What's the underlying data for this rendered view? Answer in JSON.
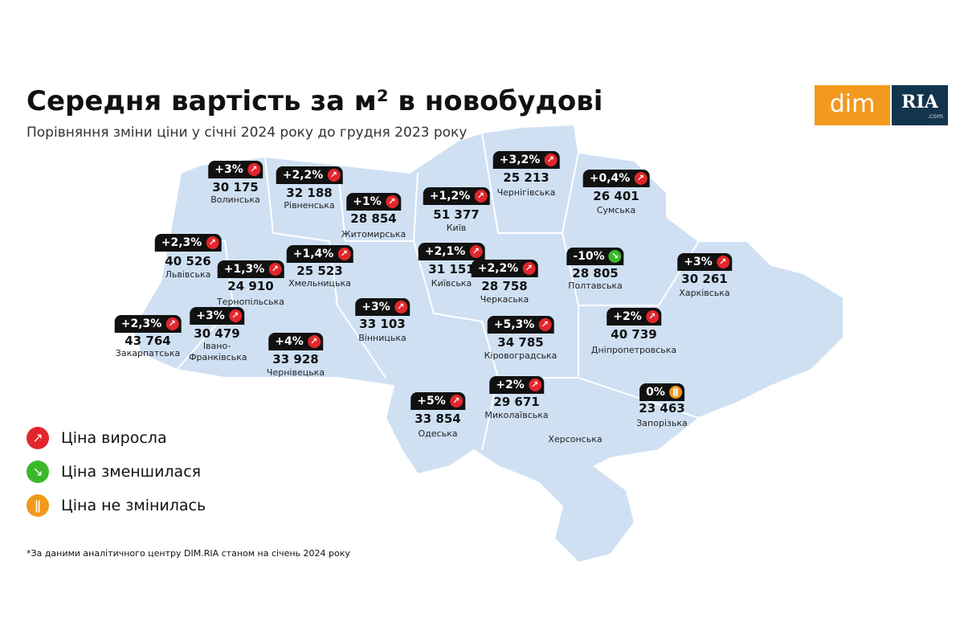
{
  "header": {
    "title": "Середня вартість за м² в новобудові",
    "subtitle": "Порівняння зміни ціни у січні 2024 року до грудня 2023 року"
  },
  "logo": {
    "left": "dim",
    "right": "RIA",
    "suffix": ".com"
  },
  "legend": [
    {
      "label": "Ціна виросла",
      "color": "#e3262b"
    },
    {
      "label": "Ціна зменшилася",
      "color": "#3bb82a"
    },
    {
      "label": "Ціна не змінилась",
      "color": "#ef9a1c"
    }
  ],
  "regions": [
    {
      "name": "Волинська",
      "change": "+3%",
      "price": "30 175",
      "color": "#e3262b"
    },
    {
      "name": "Рівненська",
      "change": "+2,2%",
      "price": "32 188",
      "color": "#e3262b"
    },
    {
      "name": "Житомирська",
      "change": "+1%",
      "price": "28 854",
      "color": "#e3262b"
    },
    {
      "name": "Київ",
      "change": "+1,2%",
      "price": "51 377",
      "color": "#e3262b"
    },
    {
      "name": "Чернігівська",
      "change": "+3,2%",
      "price": "25 213",
      "color": "#e3262b"
    },
    {
      "name": "Сумська",
      "change": "+0,4%",
      "price": "26 401",
      "color": "#e3262b"
    },
    {
      "name": "Львівська",
      "change": "+2,3%",
      "price": "40 526",
      "color": "#e3262b"
    },
    {
      "name": "Хмельницька",
      "change": "+1,4%",
      "price": "25 523",
      "color": "#e3262b"
    },
    {
      "name": "Тернопільська",
      "change": "+1,3%",
      "price": "24 910",
      "color": "#e3262b"
    },
    {
      "name": "Київська",
      "change": "+2,1%",
      "price": "31 151",
      "color": "#e3262b"
    },
    {
      "name": "Черкаська",
      "change": "+2,2%",
      "price": "28 758",
      "color": "#e3262b"
    },
    {
      "name": "Полтавська",
      "change": "-10%",
      "price": "28 805",
      "color": "#3bb82a"
    },
    {
      "name": "Харківська",
      "change": "+3%",
      "price": "30 261",
      "color": "#e3262b"
    },
    {
      "name": "Вінницька",
      "change": "+3%",
      "price": "33 103",
      "color": "#e3262b"
    },
    {
      "name": "Закарпатська",
      "change": "+2,3%",
      "price": "43 764",
      "color": "#e3262b"
    },
    {
      "name": "Івано-Франківська",
      "change": "+3%",
      "price": "30 479",
      "color": "#e3262b"
    },
    {
      "name": "Чернівецька",
      "change": "+4%",
      "price": "33 928",
      "color": "#e3262b"
    },
    {
      "name": "Кіровоградська",
      "change": "+5,3%",
      "price": "34 785",
      "color": "#e3262b"
    },
    {
      "name": "Дніпропетровська",
      "change": "+2%",
      "price": "40 739",
      "color": "#e3262b"
    },
    {
      "name": "Миколаївська",
      "change": "+2%",
      "price": "29 671",
      "color": "#e3262b"
    },
    {
      "name": "Одеська",
      "change": "+5%",
      "price": "33 854",
      "color": "#e3262b"
    },
    {
      "name": "Запорізька",
      "change": "0%",
      "price": "23 463",
      "color": "#ef9a1c"
    },
    {
      "name": "Херсонська"
    }
  ],
  "footnote": "*За даними аналітичного центру DIM.RIA станом на січень 2024 року"
}
